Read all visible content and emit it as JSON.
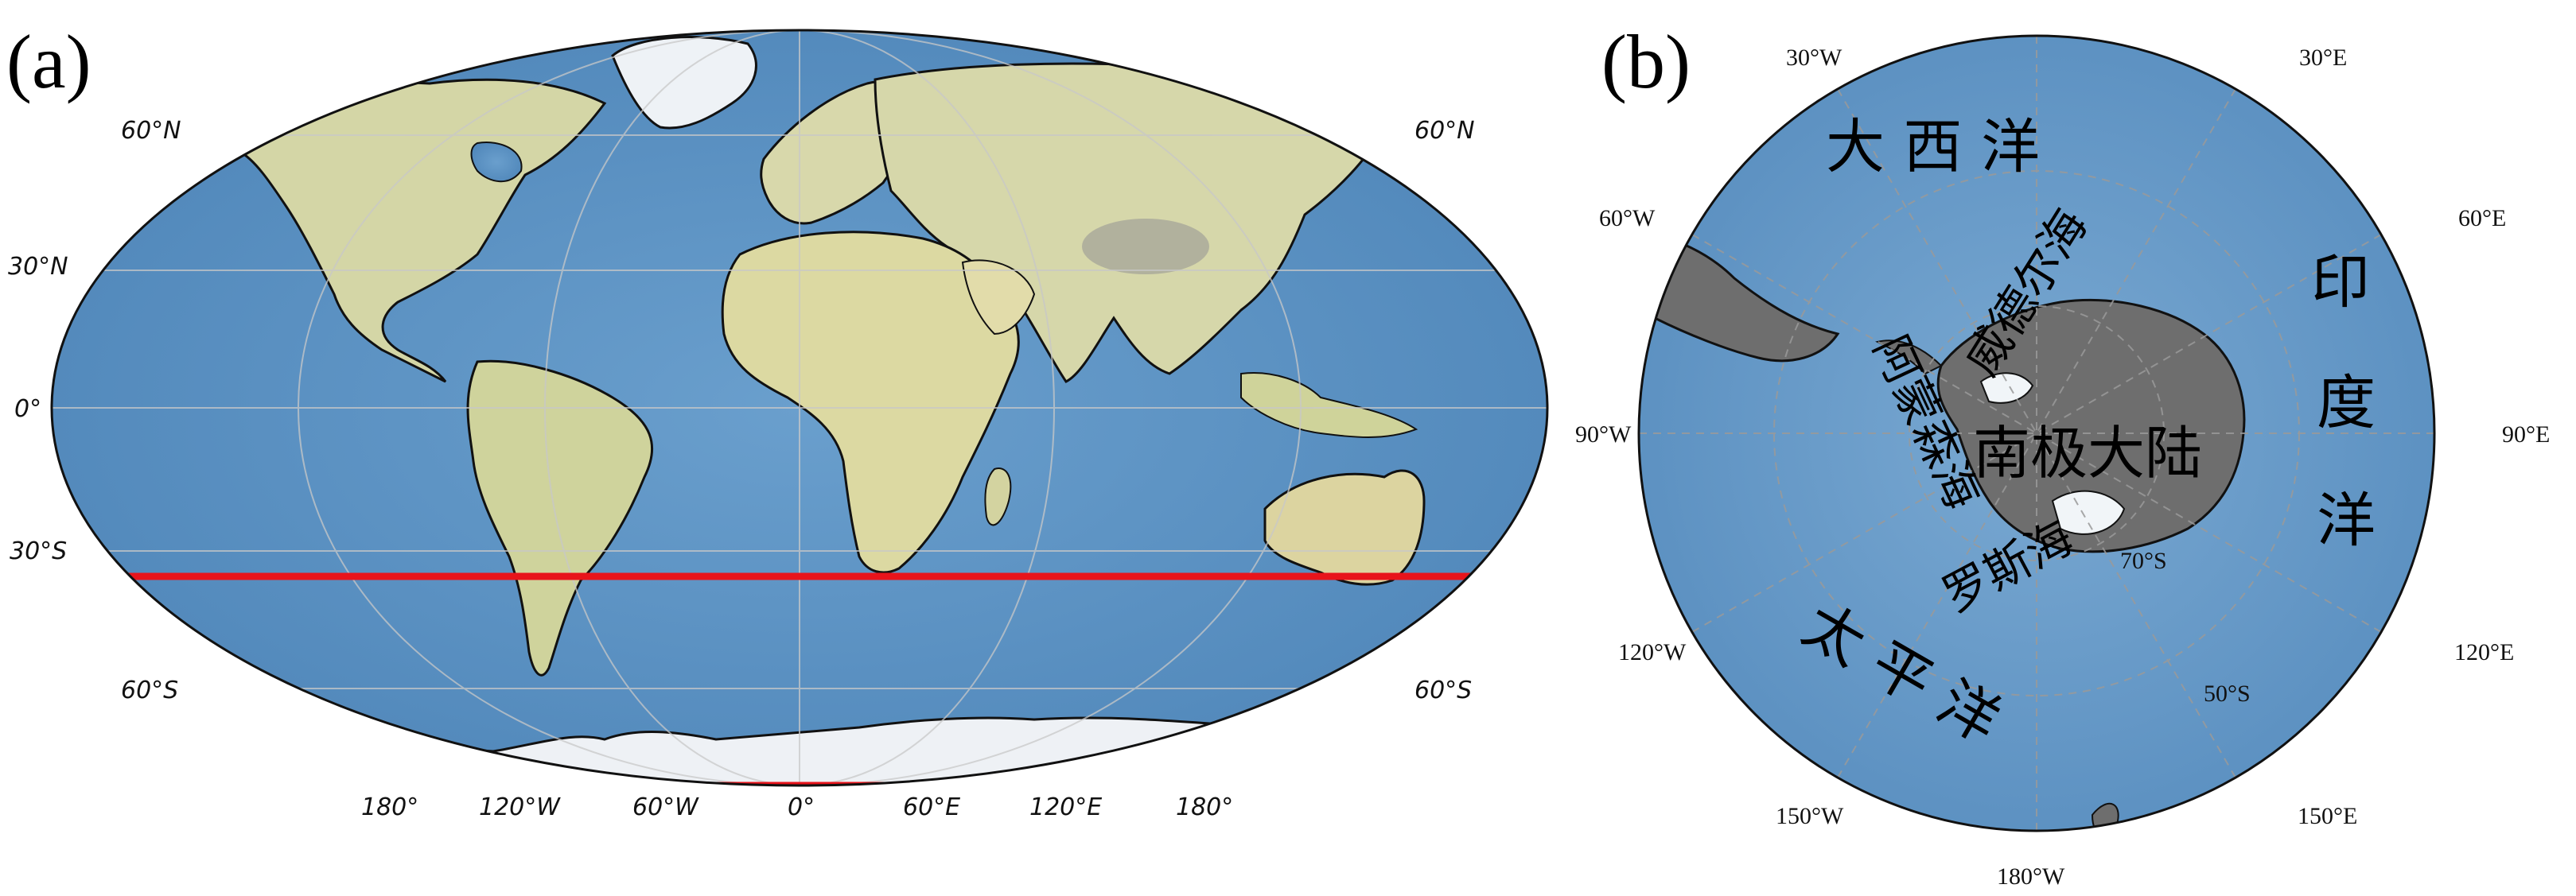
{
  "panels": {
    "a": {
      "label": "(a)",
      "lat_labels": {
        "n60_left": "60°N",
        "n30_left": "30°N",
        "eq_left": "0°",
        "s30_left": "30°S",
        "s60_left": "60°S",
        "n60_right": "60°N",
        "s60_right": "60°S"
      },
      "lon_labels": [
        "180°",
        "120°W",
        "60°W",
        "0°",
        "60°E",
        "120°E",
        "180°"
      ],
      "study_boundary_lat": "35°S",
      "colors": {
        "ocean": "#5f97c6",
        "land": "#d6d6a8",
        "ice": "#eef2f6",
        "boundary": "#e8141b"
      }
    },
    "b": {
      "label": "(b)",
      "lon_labels": {
        "w30": "30°W",
        "e30": "30°E",
        "w60": "60°W",
        "e60": "60°E",
        "w90": "90°W",
        "e90": "90°E",
        "w120": "120°W",
        "e120": "120°E",
        "w150": "150°W",
        "e150": "150°E",
        "w180": "180°W"
      },
      "lat_labels": {
        "s70": "70°S",
        "s50": "50°S"
      },
      "regions": {
        "atlantic": "大 西 洋",
        "indian": [
          "印",
          "度",
          "洋"
        ],
        "pacific": "太 平 洋",
        "weddell": "威德尔海",
        "amundsen": "阿蒙森海",
        "ross": "罗斯海",
        "antarctica": "南极大陆"
      },
      "colors": {
        "ocean": "#6b9fca",
        "land": "#6e6e6e",
        "ice": "#f1f5f8"
      }
    }
  }
}
